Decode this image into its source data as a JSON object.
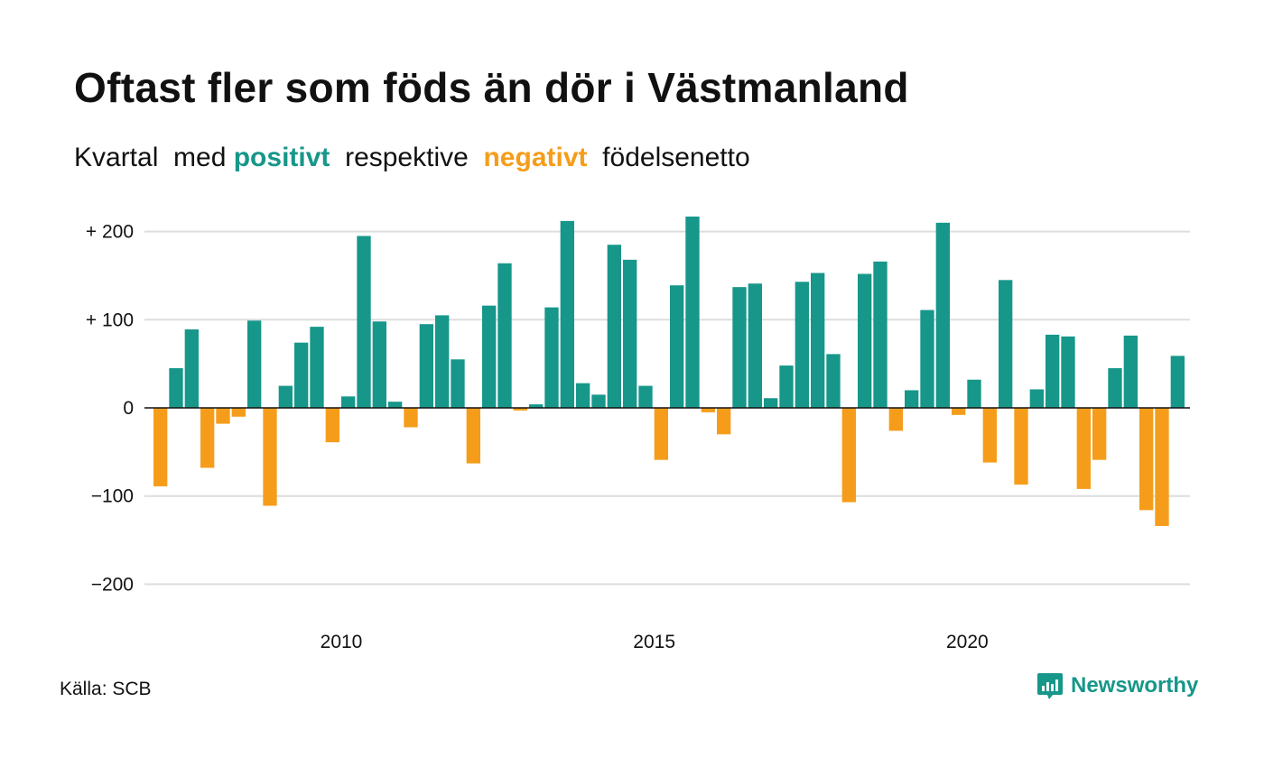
{
  "title": "Oftast fler som föds än dör i Västmanland",
  "subtitle": {
    "part1": "Kvartal  med ",
    "positive": "positivt",
    "part2": "  respektive  ",
    "negative": "negativt",
    "part3": "  födelsenetto"
  },
  "source": "Källa: SCB",
  "brand": {
    "name": "Newsworthy",
    "icon": "newsworthy-logo-icon"
  },
  "colors": {
    "positive": "#16978a",
    "negative": "#f59d1a",
    "grid": "#dddddd",
    "zero": "#111111"
  },
  "chart_data": {
    "type": "bar",
    "xlabel": "",
    "ylabel": "",
    "ylim": [
      -210,
      220
    ],
    "grid": true,
    "y_ticks": [
      200,
      100,
      0,
      -100,
      -200
    ],
    "y_tick_labels": [
      "+ 200",
      "+ 100",
      "0",
      "−100",
      "−200"
    ],
    "x_ticks": [
      {
        "label": "2010",
        "year": 2010
      },
      {
        "label": "2015",
        "year": 2015
      },
      {
        "label": "2020",
        "year": 2020
      }
    ],
    "start": {
      "year": 2007,
      "quarter": 1
    },
    "values": [
      -89,
      45,
      89,
      -68,
      -18,
      -10,
      99,
      -111,
      25,
      74,
      92,
      -39,
      13,
      195,
      98,
      7,
      -22,
      95,
      105,
      55,
      -63,
      116,
      164,
      -3,
      4,
      114,
      212,
      28,
      15,
      185,
      168,
      25,
      -59,
      139,
      217,
      -5,
      -30,
      137,
      141,
      11,
      48,
      143,
      153,
      61,
      -107,
      152,
      166,
      -26,
      20,
      111,
      210,
      -8,
      32,
      -62,
      145,
      -87,
      21,
      83,
      81,
      -92,
      -59,
      45,
      82,
      -116,
      -134,
      59
    ]
  }
}
